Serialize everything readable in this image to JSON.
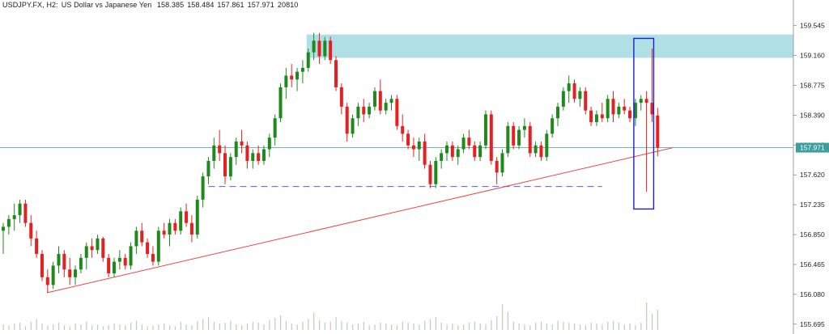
{
  "header": {
    "symbol": "USDJPY.FX, H2:",
    "description": "US Dollar vs Japanese Yen",
    "open": "158.385",
    "high": "158.484",
    "low": "157.861",
    "close": "157.971",
    "volume": "20810"
  },
  "colors": {
    "bull": "#1e8a1e",
    "bear": "#e62020",
    "supply_zone": "#b0dfe6",
    "trendline": "#ef4444",
    "support_line": "#5b5be6",
    "highlight_box": "#1e1ed0",
    "current_price_line": "#6aa6a6",
    "current_price_badge": "#3d9e9e",
    "volume": "#b8cfb8"
  },
  "chart_data": {
    "type": "candlestick",
    "title": "USDJPY.FX, H2: US Dollar vs Japanese Yen",
    "y_ticks": [
      "159.545",
      "159.160",
      "158.775",
      "158.390",
      "158.005",
      "157.620",
      "157.235",
      "156.850",
      "156.465",
      "156.080",
      "155.695"
    ],
    "ylim": [
      155.62,
      159.75
    ],
    "current_price": "157.971",
    "supply_zone": {
      "price_low": 159.13,
      "price_high": 159.43
    },
    "support_level": {
      "price": 157.47
    },
    "trendline": {
      "from": {
        "bar": 0,
        "price": 156.1
      },
      "to": {
        "bar": 119,
        "price": 157.97
      }
    },
    "highlight_box": {
      "bar_start": 114,
      "bar_end": 117,
      "price_low": 157.18,
      "price_high": 159.38
    },
    "series": [
      {
        "values": [
          [
            156.9,
            157.0,
            156.6,
            156.95
          ],
          [
            156.95,
            157.1,
            156.85,
            157.05
          ],
          [
            157.05,
            157.25,
            156.9,
            157.1
          ],
          [
            157.1,
            157.3,
            157.0,
            157.25
          ],
          [
            157.25,
            157.3,
            156.95,
            157.0
          ],
          [
            157.0,
            157.1,
            156.7,
            156.8
          ],
          [
            156.8,
            156.9,
            156.55,
            156.6
          ],
          [
            156.6,
            156.65,
            156.25,
            156.3
          ],
          [
            156.3,
            156.4,
            156.1,
            156.2
          ],
          [
            156.2,
            156.5,
            156.15,
            156.45
          ],
          [
            156.45,
            156.7,
            156.35,
            156.6
          ],
          [
            156.6,
            156.65,
            156.3,
            156.4
          ],
          [
            156.4,
            156.55,
            156.2,
            156.3
          ],
          [
            156.3,
            156.45,
            156.2,
            156.4
          ],
          [
            156.4,
            156.6,
            156.35,
            156.55
          ],
          [
            156.55,
            156.75,
            156.4,
            156.7
          ],
          [
            156.7,
            156.8,
            156.55,
            156.65
          ],
          [
            156.65,
            156.85,
            156.6,
            156.8
          ],
          [
            156.8,
            156.82,
            156.5,
            156.55
          ],
          [
            156.55,
            156.6,
            156.3,
            156.35
          ],
          [
            156.35,
            156.55,
            156.3,
            156.5
          ],
          [
            156.5,
            156.65,
            156.4,
            156.55
          ],
          [
            156.55,
            156.6,
            156.4,
            156.45
          ],
          [
            156.45,
            156.75,
            156.4,
            156.7
          ],
          [
            156.7,
            156.95,
            156.6,
            156.9
          ],
          [
            156.9,
            157.0,
            156.7,
            156.75
          ],
          [
            156.75,
            156.8,
            156.55,
            156.6
          ],
          [
            156.6,
            156.7,
            156.45,
            156.5
          ],
          [
            156.5,
            156.95,
            156.45,
            156.9
          ],
          [
            156.9,
            157.0,
            156.8,
            156.85
          ],
          [
            156.85,
            157.05,
            156.7,
            157.0
          ],
          [
            157.0,
            157.05,
            156.85,
            156.9
          ],
          [
            156.9,
            157.2,
            156.85,
            157.15
          ],
          [
            157.15,
            157.25,
            156.95,
            157.0
          ],
          [
            157.0,
            157.1,
            156.75,
            156.85
          ],
          [
            156.85,
            157.35,
            156.8,
            157.3
          ],
          [
            157.3,
            157.65,
            157.2,
            157.6
          ],
          [
            157.6,
            157.85,
            157.5,
            157.8
          ],
          [
            157.8,
            158.1,
            157.7,
            158.0
          ],
          [
            158.0,
            158.2,
            157.8,
            157.9
          ],
          [
            157.9,
            158.0,
            157.5,
            157.6
          ],
          [
            157.6,
            157.9,
            157.55,
            157.85
          ],
          [
            157.85,
            158.1,
            157.75,
            158.05
          ],
          [
            158.05,
            158.2,
            157.9,
            158.0
          ],
          [
            158.0,
            158.05,
            157.7,
            157.8
          ],
          [
            157.8,
            157.95,
            157.7,
            157.9
          ],
          [
            157.9,
            158.0,
            157.75,
            157.8
          ],
          [
            157.8,
            158.0,
            157.75,
            157.95
          ],
          [
            157.95,
            158.15,
            157.85,
            158.1
          ],
          [
            158.1,
            158.4,
            158.0,
            158.35
          ],
          [
            158.35,
            158.8,
            158.3,
            158.75
          ],
          [
            158.75,
            159.0,
            158.6,
            158.9
          ],
          [
            158.9,
            159.05,
            158.75,
            158.85
          ],
          [
            158.85,
            159.0,
            158.7,
            158.95
          ],
          [
            158.95,
            159.1,
            158.8,
            159.0
          ],
          [
            159.0,
            159.25,
            158.95,
            159.2
          ],
          [
            159.2,
            159.45,
            159.1,
            159.35
          ],
          [
            159.35,
            159.45,
            159.05,
            159.15
          ],
          [
            159.15,
            159.4,
            159.1,
            159.35
          ],
          [
            159.35,
            159.4,
            159.05,
            159.1
          ],
          [
            159.1,
            159.15,
            158.7,
            158.75
          ],
          [
            158.75,
            158.8,
            158.4,
            158.5
          ],
          [
            158.5,
            158.55,
            158.05,
            158.15
          ],
          [
            158.15,
            158.4,
            158.1,
            158.35
          ],
          [
            158.35,
            158.55,
            158.25,
            158.5
          ],
          [
            158.5,
            158.6,
            158.3,
            158.4
          ],
          [
            158.4,
            158.55,
            158.35,
            158.5
          ],
          [
            158.5,
            158.75,
            158.45,
            158.7
          ],
          [
            158.7,
            158.85,
            158.4,
            158.45
          ],
          [
            158.45,
            158.6,
            158.4,
            158.55
          ],
          [
            158.55,
            158.65,
            158.45,
            158.6
          ],
          [
            158.6,
            158.65,
            158.2,
            158.25
          ],
          [
            158.25,
            158.4,
            158.05,
            158.15
          ],
          [
            158.15,
            158.2,
            157.95,
            158.0
          ],
          [
            158.0,
            158.1,
            157.85,
            157.95
          ],
          [
            157.95,
            158.1,
            157.8,
            158.05
          ],
          [
            158.05,
            158.15,
            157.7,
            157.75
          ],
          [
            157.75,
            157.8,
            157.45,
            157.5
          ],
          [
            157.5,
            157.85,
            157.45,
            157.8
          ],
          [
            157.8,
            157.95,
            157.7,
            157.9
          ],
          [
            157.9,
            158.05,
            157.8,
            158.0
          ],
          [
            158.0,
            158.05,
            157.8,
            157.85
          ],
          [
            157.85,
            158.0,
            157.75,
            157.95
          ],
          [
            157.95,
            158.15,
            157.9,
            158.1
          ],
          [
            158.1,
            158.2,
            157.95,
            158.0
          ],
          [
            158.0,
            158.05,
            157.8,
            157.85
          ],
          [
            157.85,
            158.05,
            157.8,
            158.0
          ],
          [
            158.0,
            158.45,
            157.95,
            158.4
          ],
          [
            158.4,
            158.45,
            157.75,
            157.8
          ],
          [
            157.8,
            157.85,
            157.5,
            157.65
          ],
          [
            157.65,
            157.95,
            157.6,
            157.9
          ],
          [
            157.9,
            158.3,
            157.85,
            158.25
          ],
          [
            158.25,
            158.3,
            157.95,
            158.0
          ],
          [
            158.0,
            158.25,
            157.95,
            158.2
          ],
          [
            158.2,
            158.35,
            158.1,
            158.25
          ],
          [
            158.25,
            158.3,
            157.85,
            157.9
          ],
          [
            157.9,
            158.05,
            157.85,
            158.0
          ],
          [
            158.0,
            158.05,
            157.8,
            157.85
          ],
          [
            157.85,
            158.2,
            157.8,
            158.15
          ],
          [
            158.15,
            158.4,
            158.1,
            158.35
          ],
          [
            158.35,
            158.55,
            158.25,
            158.5
          ],
          [
            158.5,
            158.75,
            158.45,
            158.7
          ],
          [
            158.7,
            158.9,
            158.55,
            158.8
          ],
          [
            158.8,
            158.85,
            158.55,
            158.6
          ],
          [
            158.6,
            158.75,
            158.5,
            158.7
          ],
          [
            158.7,
            158.75,
            158.4,
            158.45
          ],
          [
            158.45,
            158.5,
            158.25,
            158.3
          ],
          [
            158.3,
            158.45,
            158.25,
            158.4
          ],
          [
            158.4,
            158.55,
            158.3,
            158.35
          ],
          [
            158.35,
            158.65,
            158.3,
            158.6
          ],
          [
            158.6,
            158.7,
            158.3,
            158.4
          ],
          [
            158.4,
            158.55,
            158.35,
            158.5
          ],
          [
            158.5,
            158.6,
            158.4,
            158.45
          ],
          [
            158.45,
            158.5,
            158.3,
            158.35
          ],
          [
            158.35,
            158.6,
            158.25,
            158.55
          ],
          [
            158.55,
            158.65,
            158.45,
            158.6
          ],
          [
            158.6,
            158.7,
            157.4,
            158.55
          ],
          [
            158.55,
            159.25,
            158.3,
            158.4
          ],
          [
            158.385,
            158.484,
            157.861,
            157.971
          ]
        ]
      }
    ],
    "volume": [
      6,
      5,
      7,
      8,
      4,
      9,
      12,
      7,
      5,
      6,
      8,
      5,
      4,
      7,
      6,
      9,
      5,
      6,
      4,
      5,
      7,
      6,
      5,
      8,
      10,
      6,
      4,
      5,
      6,
      7,
      5,
      4,
      9,
      6,
      5,
      10,
      12,
      14,
      9,
      7,
      8,
      10,
      6,
      5,
      7,
      9,
      8,
      6,
      11,
      13,
      16,
      10,
      7,
      6,
      9,
      12,
      19,
      11,
      8,
      9,
      14,
      10,
      8,
      6,
      7,
      9,
      5,
      6,
      8,
      7,
      6,
      5,
      9,
      8,
      7,
      6,
      10,
      12,
      14,
      8,
      6,
      7,
      5,
      6,
      8,
      9,
      7,
      6,
      11,
      15,
      28,
      20,
      9,
      7,
      6,
      5,
      8,
      9,
      7,
      6,
      10,
      9,
      8,
      7,
      6,
      5,
      8,
      7,
      6,
      9,
      10,
      8,
      6,
      7,
      5,
      8,
      30,
      18,
      22
    ]
  }
}
